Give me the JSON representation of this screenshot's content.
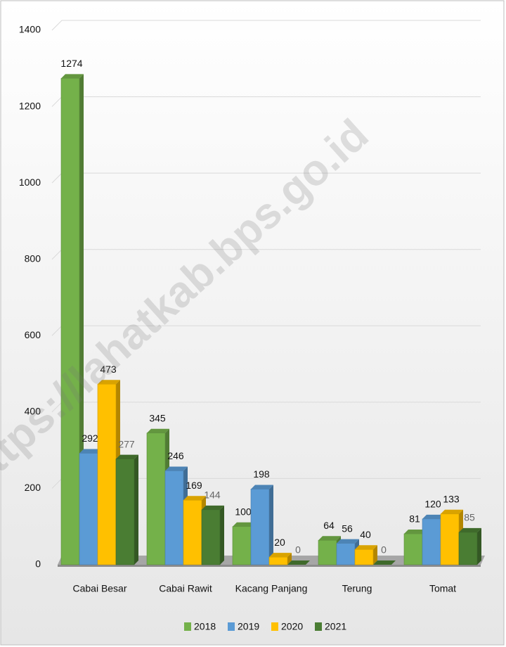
{
  "chart_data": {
    "type": "bar",
    "categories": [
      "Cabai Besar",
      "Cabai Rawit",
      "Kacang Panjang",
      "Terung",
      "Tomat"
    ],
    "series": [
      {
        "name": "2018",
        "color": "#74b14a",
        "values": [
          1274,
          345,
          100,
          64,
          81
        ]
      },
      {
        "name": "2019",
        "color": "#5b9bd5",
        "values": [
          292,
          246,
          198,
          56,
          120
        ]
      },
      {
        "name": "2020",
        "color": "#ffc000",
        "values": [
          473,
          169,
          20,
          40,
          133
        ]
      },
      {
        "name": "2021",
        "color": "#4a7d33",
        "values": [
          277,
          144,
          0,
          0,
          85
        ]
      }
    ],
    "ylim": [
      0,
      1400
    ],
    "yticks": [
      0,
      200,
      400,
      600,
      800,
      1000,
      1200,
      1400
    ],
    "grid": true,
    "legend": "bottom",
    "watermark": "https://lahatkab.bps.go.id"
  }
}
